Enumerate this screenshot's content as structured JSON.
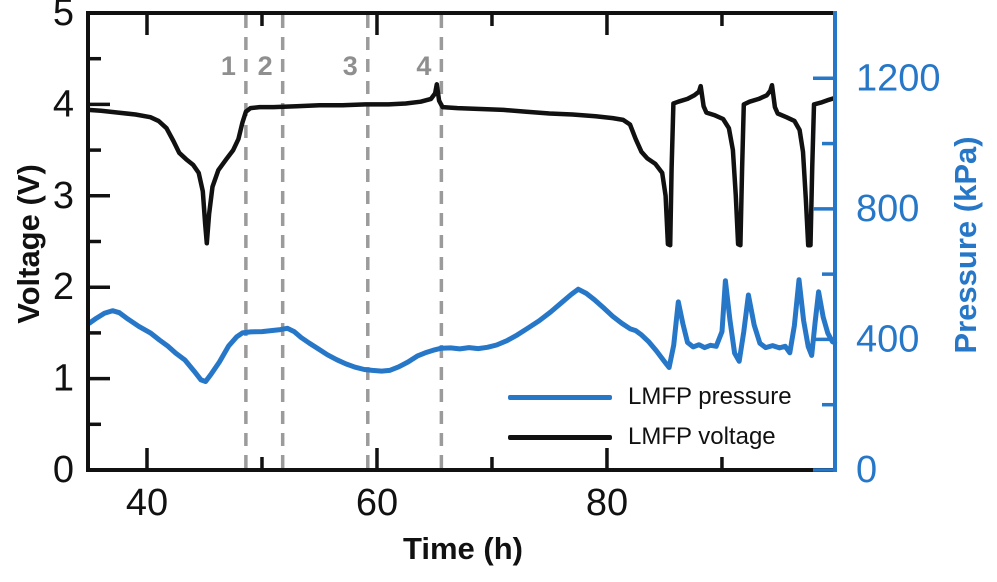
{
  "figure": {
    "background": "#ffffff",
    "colors": {
      "voltage_black": "#111111",
      "pressure_blue": "#2777c8",
      "marker_gray": "#9b9b9b",
      "marker_label_gray": "#8f8f8f"
    }
  },
  "chart_data": {
    "type": "line",
    "title": "",
    "xlabel": "Time (h)",
    "ylabel_left": "Voltage (V)",
    "ylabel_right": "Pressure (kPa)",
    "xlim": [
      34.87,
      99.83
    ],
    "ylim_left": [
      0,
      5
    ],
    "ylim_right": [
      0,
      1400
    ],
    "x_ticks_major": [
      40,
      60,
      80
    ],
    "x_ticks_minor": [
      50,
      70,
      90
    ],
    "y_left_ticks_major": [
      0,
      1,
      2,
      3,
      4,
      5
    ],
    "y_left_ticks_minor": [
      0.5,
      1.5,
      2.5,
      3.5,
      4.5
    ],
    "y_right_ticks_major": [
      0,
      400,
      800,
      1200
    ],
    "y_right_ticks_minor": [
      200,
      600,
      1000
    ],
    "grid": false,
    "legend": {
      "position": "lower right",
      "entries": [
        {
          "label": "LMFP pressure",
          "color": "#2777c8"
        },
        {
          "label": "LMFP voltage",
          "color": "#111111"
        }
      ]
    },
    "event_markers": [
      {
        "label": "1",
        "t": 48.6
      },
      {
        "label": "2",
        "t": 51.8
      },
      {
        "label": "3",
        "t": 59.2
      },
      {
        "label": "4",
        "t": 65.6
      }
    ],
    "series": [
      {
        "name": "LMFP pressure",
        "axis": "right",
        "color": "#2777c8",
        "unit": "kPa",
        "points": [
          [
            35.0,
            450
          ],
          [
            35.6,
            465
          ],
          [
            36.3,
            480
          ],
          [
            37.0,
            488
          ],
          [
            37.6,
            482
          ],
          [
            38.2,
            466
          ],
          [
            39.3,
            440
          ],
          [
            40.3,
            420
          ],
          [
            41.1,
            398
          ],
          [
            41.8,
            380
          ],
          [
            42.5,
            358
          ],
          [
            43.3,
            337
          ],
          [
            44.1,
            303
          ],
          [
            44.7,
            276
          ],
          [
            45.1,
            271
          ],
          [
            45.6,
            295
          ],
          [
            46.3,
            331
          ],
          [
            47.1,
            380
          ],
          [
            47.8,
            408
          ],
          [
            48.3,
            420
          ],
          [
            49.0,
            423
          ],
          [
            50.0,
            424
          ],
          [
            50.8,
            427
          ],
          [
            51.6,
            430
          ],
          [
            52.2,
            434
          ],
          [
            52.8,
            424
          ],
          [
            53.4,
            406
          ],
          [
            54.1,
            389
          ],
          [
            54.9,
            371
          ],
          [
            55.7,
            353
          ],
          [
            56.5,
            338
          ],
          [
            57.3,
            325
          ],
          [
            58.1,
            315
          ],
          [
            58.9,
            308
          ],
          [
            59.6,
            305
          ],
          [
            60.4,
            303
          ],
          [
            61.1,
            305
          ],
          [
            61.9,
            316
          ],
          [
            62.7,
            331
          ],
          [
            63.5,
            349
          ],
          [
            64.2,
            359
          ],
          [
            64.9,
            367
          ],
          [
            65.6,
            373
          ],
          [
            66.4,
            374
          ],
          [
            67.2,
            371
          ],
          [
            68.0,
            375
          ],
          [
            68.8,
            372
          ],
          [
            69.6,
            376
          ],
          [
            70.4,
            383
          ],
          [
            71.3,
            396
          ],
          [
            72.2,
            414
          ],
          [
            73.1,
            434
          ],
          [
            74.1,
            457
          ],
          [
            75.1,
            484
          ],
          [
            76.1,
            514
          ],
          [
            76.9,
            538
          ],
          [
            77.5,
            554
          ],
          [
            78.2,
            541
          ],
          [
            78.9,
            522
          ],
          [
            79.7,
            497
          ],
          [
            80.5,
            471
          ],
          [
            81.3,
            449
          ],
          [
            82.0,
            433
          ],
          [
            82.5,
            427
          ],
          [
            83.0,
            414
          ],
          [
            83.6,
            394
          ],
          [
            84.3,
            365
          ],
          [
            85.0,
            332
          ],
          [
            85.4,
            314
          ],
          [
            85.8,
            382
          ],
          [
            86.2,
            515
          ],
          [
            86.6,
            448
          ],
          [
            87.0,
            391
          ],
          [
            87.5,
            377
          ],
          [
            88.0,
            384
          ],
          [
            88.5,
            375
          ],
          [
            89.0,
            382
          ],
          [
            89.5,
            379
          ],
          [
            90.0,
            424
          ],
          [
            90.3,
            580
          ],
          [
            90.7,
            458
          ],
          [
            91.1,
            358
          ],
          [
            91.5,
            333
          ],
          [
            91.9,
            424
          ],
          [
            92.3,
            536
          ],
          [
            92.8,
            444
          ],
          [
            93.3,
            388
          ],
          [
            93.8,
            375
          ],
          [
            94.4,
            381
          ],
          [
            95.0,
            374
          ],
          [
            95.5,
            379
          ],
          [
            95.9,
            359
          ],
          [
            96.3,
            443
          ],
          [
            96.7,
            583
          ],
          [
            97.1,
            458
          ],
          [
            97.5,
            378
          ],
          [
            97.8,
            351
          ],
          [
            98.1,
            452
          ],
          [
            98.4,
            546
          ],
          [
            98.8,
            468
          ],
          [
            99.2,
            419
          ],
          [
            99.6,
            393
          ],
          [
            99.8,
            390
          ]
        ]
      },
      {
        "name": "LMFP voltage",
        "axis": "left",
        "color": "#111111",
        "unit": "V",
        "points": [
          [
            34.9,
            3.94
          ],
          [
            36.0,
            3.93
          ],
          [
            37.5,
            3.91
          ],
          [
            39.0,
            3.89
          ],
          [
            40.3,
            3.86
          ],
          [
            41.0,
            3.82
          ],
          [
            41.7,
            3.74
          ],
          [
            42.3,
            3.6
          ],
          [
            42.8,
            3.47
          ],
          [
            43.4,
            3.4
          ],
          [
            44.0,
            3.34
          ],
          [
            44.5,
            3.25
          ],
          [
            44.85,
            3.05
          ],
          [
            45.05,
            2.7
          ],
          [
            45.2,
            2.48
          ],
          [
            45.4,
            2.8
          ],
          [
            45.7,
            3.1
          ],
          [
            46.2,
            3.28
          ],
          [
            46.9,
            3.4
          ],
          [
            47.5,
            3.5
          ],
          [
            47.95,
            3.62
          ],
          [
            48.3,
            3.8
          ],
          [
            48.6,
            3.92
          ],
          [
            49.0,
            3.96
          ],
          [
            49.8,
            3.97
          ],
          [
            51.0,
            3.97
          ],
          [
            53.0,
            3.98
          ],
          [
            55.0,
            3.99
          ],
          [
            57.0,
            3.99
          ],
          [
            59.0,
            4.0
          ],
          [
            61.0,
            4.0
          ],
          [
            62.5,
            4.01
          ],
          [
            63.8,
            4.03
          ],
          [
            64.7,
            4.06
          ],
          [
            65.05,
            4.12
          ],
          [
            65.2,
            4.22
          ],
          [
            65.4,
            4.04
          ],
          [
            65.7,
            3.97
          ],
          [
            67.0,
            3.96
          ],
          [
            69.0,
            3.95
          ],
          [
            71.0,
            3.94
          ],
          [
            73.0,
            3.92
          ],
          [
            75.0,
            3.9
          ],
          [
            77.0,
            3.89
          ],
          [
            79.0,
            3.87
          ],
          [
            80.5,
            3.85
          ],
          [
            81.4,
            3.83
          ],
          [
            82.0,
            3.78
          ],
          [
            82.5,
            3.62
          ],
          [
            83.0,
            3.48
          ],
          [
            83.5,
            3.41
          ],
          [
            84.2,
            3.35
          ],
          [
            84.8,
            3.25
          ],
          [
            85.1,
            3.0
          ],
          [
            85.3,
            2.47
          ],
          [
            85.5,
            2.46
          ],
          [
            85.62,
            3.3
          ],
          [
            85.78,
            4.01
          ],
          [
            86.2,
            4.03
          ],
          [
            87.0,
            4.06
          ],
          [
            87.6,
            4.1
          ],
          [
            88.0,
            4.14
          ],
          [
            88.15,
            4.2
          ],
          [
            88.4,
            3.98
          ],
          [
            88.65,
            3.91
          ],
          [
            89.4,
            3.88
          ],
          [
            90.1,
            3.84
          ],
          [
            90.6,
            3.74
          ],
          [
            90.95,
            3.5
          ],
          [
            91.2,
            3.0
          ],
          [
            91.4,
            2.47
          ],
          [
            91.6,
            2.46
          ],
          [
            91.75,
            3.3
          ],
          [
            91.9,
            4.0
          ],
          [
            92.4,
            4.03
          ],
          [
            93.2,
            4.06
          ],
          [
            93.9,
            4.1
          ],
          [
            94.2,
            4.15
          ],
          [
            94.35,
            4.21
          ],
          [
            94.6,
            3.97
          ],
          [
            94.85,
            3.9
          ],
          [
            95.6,
            3.86
          ],
          [
            96.3,
            3.82
          ],
          [
            96.75,
            3.72
          ],
          [
            97.05,
            3.48
          ],
          [
            97.3,
            2.95
          ],
          [
            97.5,
            2.46
          ],
          [
            97.7,
            2.46
          ],
          [
            97.85,
            3.3
          ],
          [
            98.0,
            4.0
          ],
          [
            98.6,
            4.02
          ],
          [
            99.3,
            4.05
          ],
          [
            99.8,
            4.07
          ]
        ]
      }
    ]
  }
}
